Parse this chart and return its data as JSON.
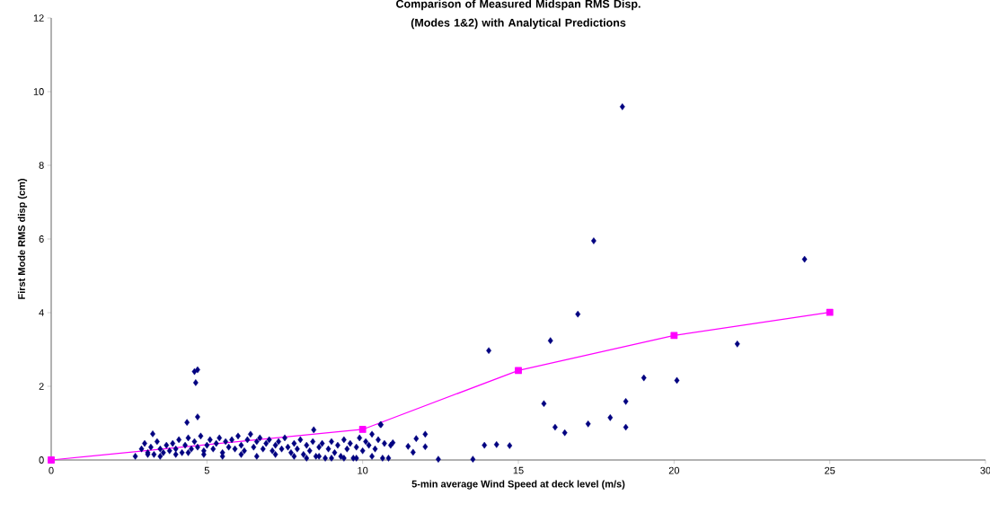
{
  "chart_data": {
    "type": "scatter",
    "title": "Comparison of Measured Midspan RMS Disp. (Modes 1&2) with Analytical Predictions",
    "xlabel": "5-min average Wind Speed at deck level (m/s)",
    "ylabel": "First Mode RMS disp (cm)",
    "xlim": [
      0,
      30
    ],
    "ylim": [
      0,
      12
    ],
    "xticks": [
      0,
      5,
      10,
      15,
      20,
      25,
      30
    ],
    "yticks": [
      0,
      2,
      4,
      6,
      8,
      10,
      12
    ],
    "grid": false,
    "series": [
      {
        "color": "#000080",
        "marker": "diamond",
        "x": [
          2.7,
          2.9,
          3.0,
          3.1,
          3.2,
          3.3,
          3.4,
          3.5,
          3.6,
          3.7,
          3.8,
          3.9,
          4.0,
          4.1,
          4.2,
          4.3,
          4.4,
          4.5,
          4.6,
          4.7,
          4.8,
          4.9,
          5.0,
          5.1,
          5.2,
          5.3,
          5.4,
          5.5,
          5.6,
          5.7,
          5.8,
          5.9,
          6.0,
          6.1,
          6.2,
          6.3,
          6.4,
          6.5,
          6.6,
          6.7,
          6.8,
          6.9,
          7.0,
          7.1,
          7.2,
          7.3,
          7.4,
          7.5,
          7.6,
          7.7,
          7.8,
          7.9,
          8.0,
          8.1,
          8.2,
          8.3,
          8.4,
          8.5,
          8.6,
          8.7,
          8.8,
          8.9,
          9.0,
          9.1,
          9.2,
          9.3,
          9.4,
          9.5,
          9.6,
          9.7,
          9.8,
          9.9,
          10.0,
          10.1,
          10.2,
          10.3,
          10.4,
          10.5,
          10.7,
          10.9,
          3.1,
          3.5,
          4.0,
          4.4,
          4.9,
          5.5,
          6.1,
          6.6,
          7.2,
          7.8,
          8.2,
          8.6,
          9.0,
          9.4,
          9.8,
          10.3,
          3.26,
          4.36,
          4.6,
          4.7,
          4.64,
          4.7,
          8.43,
          10.57,
          10.59,
          10.64,
          10.83,
          10.97,
          11.46,
          11.62,
          11.72,
          12.01,
          12.01,
          12.43,
          13.54,
          13.91,
          14.3,
          14.72,
          14.05,
          15.82,
          16.03,
          16.18,
          16.49,
          16.91,
          17.24,
          17.42,
          17.95,
          18.34,
          18.45,
          18.45,
          19.03,
          20.09,
          22.03,
          24.19
        ],
        "values": [
          0.1,
          0.3,
          0.45,
          0.2,
          0.35,
          0.15,
          0.5,
          0.3,
          0.2,
          0.4,
          0.25,
          0.45,
          0.3,
          0.55,
          0.2,
          0.4,
          0.6,
          0.3,
          0.5,
          0.35,
          0.65,
          0.25,
          0.4,
          0.55,
          0.3,
          0.45,
          0.6,
          0.2,
          0.5,
          0.35,
          0.55,
          0.3,
          0.65,
          0.4,
          0.25,
          0.55,
          0.7,
          0.35,
          0.5,
          0.6,
          0.3,
          0.45,
          0.55,
          0.25,
          0.4,
          0.5,
          0.3,
          0.6,
          0.35,
          0.2,
          0.45,
          0.3,
          0.55,
          0.15,
          0.4,
          0.25,
          0.5,
          0.1,
          0.35,
          0.45,
          0.05,
          0.3,
          0.5,
          0.2,
          0.4,
          0.1,
          0.55,
          0.3,
          0.45,
          0.05,
          0.35,
          0.6,
          0.25,
          0.5,
          0.4,
          0.7,
          0.3,
          0.55,
          0.45,
          0.4,
          0.15,
          0.1,
          0.15,
          0.2,
          0.15,
          0.1,
          0.15,
          0.1,
          0.15,
          0.1,
          0.05,
          0.1,
          0.05,
          0.05,
          0.05,
          0.1,
          0.71,
          1.02,
          2.4,
          2.45,
          2.1,
          1.17,
          0.82,
          0.96,
          0.96,
          0.05,
          0.05,
          0.47,
          0.37,
          0.21,
          0.58,
          0.36,
          0.7,
          0.02,
          0.02,
          0.4,
          0.42,
          0.39,
          2.97,
          1.53,
          3.24,
          0.89,
          0.74,
          3.96,
          0.98,
          5.95,
          1.15,
          9.59,
          1.59,
          0.89,
          2.23,
          2.16,
          3.15,
          5.45
        ]
      },
      {
        "type": "line",
        "color": "#ff00ff",
        "marker": "square",
        "x": [
          0,
          10,
          15,
          20,
          25
        ],
        "values": [
          0,
          0.83,
          2.43,
          3.38,
          4.01
        ]
      }
    ]
  }
}
